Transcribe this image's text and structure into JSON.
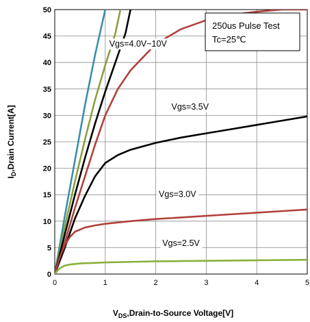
{
  "chart_data": {
    "type": "line",
    "xlabel_main": "V",
    "xlabel_sub": "DS",
    "xlabel_rest": ",Drain-to-Source Voltage[V]",
    "ylabel_main": "I",
    "ylabel_sub": "D",
    "ylabel_rest": ",Drain Current[A]",
    "xlim": [
      0,
      5
    ],
    "ylim": [
      0,
      50
    ],
    "xticks": [
      0,
      1,
      2,
      3,
      4,
      5
    ],
    "yticks": [
      0,
      5,
      10,
      15,
      20,
      25,
      30,
      35,
      40,
      45,
      50
    ],
    "grid": true,
    "legend_box": {
      "line1": "250us Pulse Test",
      "line2": "Tc=25℃",
      "placement": "top-right"
    },
    "colors": {
      "teal": "#3a8fa8",
      "olive": "#8aa040",
      "black": "#000000",
      "red": "#b0403c",
      "green": "#8aaf3c"
    },
    "series": [
      {
        "color": "#3a8fa8",
        "x": [
          0,
          0.2,
          0.4,
          0.6,
          0.8,
          1.0
        ],
        "y": [
          0,
          11,
          21.5,
          32,
          41.5,
          50
        ]
      },
      {
        "color": "#8aa040",
        "x": [
          0,
          0.2,
          0.4,
          0.6,
          0.8,
          1.0,
          1.2,
          1.3
        ],
        "y": [
          0,
          9,
          17.5,
          25.5,
          33,
          39.5,
          45.5,
          50
        ]
      },
      {
        "color": "#000000",
        "x": [
          0,
          0.2,
          0.4,
          0.6,
          0.8,
          1.0,
          1.2,
          1.4,
          1.5
        ],
        "y": [
          0,
          7.5,
          15,
          22,
          28.5,
          34.5,
          40,
          45.5,
          50
        ]
      },
      {
        "color": "#b0403c",
        "x": [
          0,
          0.2,
          0.4,
          0.6,
          0.8,
          1.0,
          1.25,
          1.5,
          2.0,
          2.5,
          3.0,
          3.5,
          4.0,
          4.5,
          5.0
        ],
        "y": [
          0,
          6,
          12.5,
          18.5,
          24.5,
          30,
          35,
          38.5,
          43.5,
          46.3,
          48,
          49,
          49.6,
          50,
          50
        ]
      },
      {
        "color": "#000000",
        "x": [
          0,
          0.2,
          0.4,
          0.6,
          0.8,
          1.0,
          1.25,
          1.5,
          2.0,
          2.5,
          3.0,
          3.5,
          4.0,
          4.5,
          5.0
        ],
        "y": [
          0,
          5,
          10.5,
          14.8,
          18.5,
          21,
          22.5,
          23.5,
          24.8,
          25.8,
          26.6,
          27.4,
          28.2,
          29,
          29.8
        ]
      },
      {
        "color": "#b0403c",
        "x": [
          0,
          0.1,
          0.2,
          0.3,
          0.4,
          0.6,
          0.8,
          1.0,
          1.5,
          2.0,
          2.5,
          3.0,
          3.5,
          4.0,
          4.5,
          5.0
        ],
        "y": [
          0,
          3.2,
          5.5,
          7,
          8,
          8.8,
          9.2,
          9.5,
          10,
          10.4,
          10.7,
          11,
          11.3,
          11.6,
          11.9,
          12.2
        ]
      },
      {
        "color": "#8aaf3c",
        "x": [
          0,
          0.05,
          0.1,
          0.2,
          0.3,
          0.5,
          1.0,
          1.5,
          2.0,
          2.5,
          3.0,
          3.5,
          4.0,
          4.5,
          5.0
        ],
        "y": [
          0,
          0.6,
          1.1,
          1.6,
          1.8,
          2.0,
          2.2,
          2.3,
          2.4,
          2.45,
          2.5,
          2.55,
          2.6,
          2.65,
          2.7
        ]
      }
    ],
    "annotations": [
      {
        "text": "Vgs=4.0V~10V",
        "x": 1.65,
        "y": 43.5
      },
      {
        "text": "Vgs=3.5V",
        "x": 2.68,
        "y": 31.6
      },
      {
        "text": "Vgs=3.0V",
        "x": 2.43,
        "y": 15.1
      },
      {
        "text": "Vgs=2.5V",
        "x": 2.5,
        "y": 5.8
      }
    ]
  }
}
